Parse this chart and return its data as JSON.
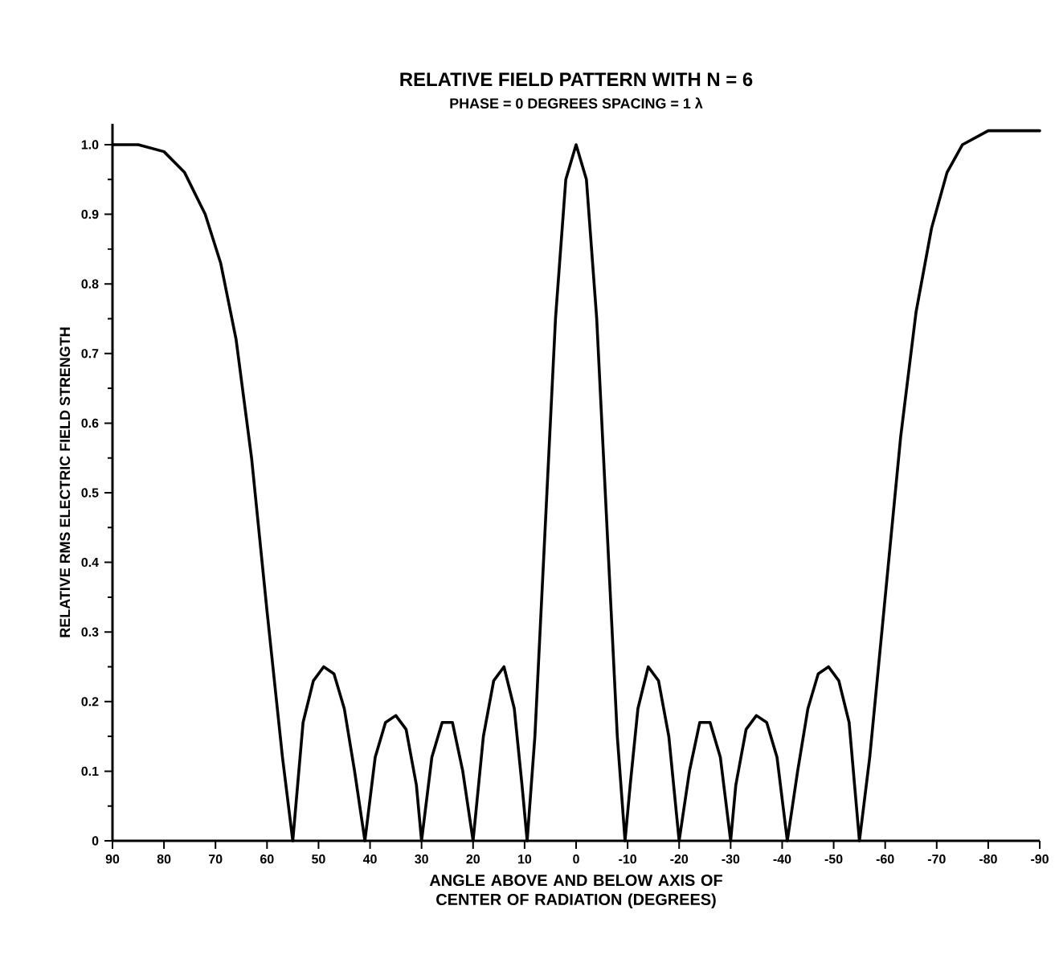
{
  "chart_data": {
    "type": "line",
    "title": "RELATIVE FIELD PATTERN WITH N = 6",
    "subtitle": "PHASE = 0 DEGREES   SPACING = 1 λ",
    "xlabel": "ANGLE ABOVE AND BELOW AXIS OF CENTER OF RADIATION (DEGREES)",
    "ylabel": "RELATIVE RMS ELECTRIC FIELD STRENGTH",
    "x": [
      90,
      85,
      80,
      76,
      72,
      69,
      66,
      63,
      60,
      57,
      55,
      53,
      51,
      49,
      47,
      45,
      43,
      41,
      39,
      37,
      35,
      33,
      31,
      30,
      28,
      26,
      24,
      22,
      20,
      18,
      16,
      14,
      12,
      10.5,
      9.5,
      8,
      6,
      4,
      2,
      0,
      -2,
      -4,
      -6,
      -8,
      -9.5,
      -10.5,
      -12,
      -14,
      -16,
      -18,
      -20,
      -22,
      -24,
      -26,
      -28,
      -30,
      -31,
      -33,
      -35,
      -37,
      -39,
      -41,
      -43,
      -45,
      -47,
      -49,
      -51,
      -53,
      -55,
      -57,
      -60,
      -63,
      -66,
      -69,
      -72,
      -75,
      -80,
      -85,
      -90
    ],
    "series": [
      {
        "color": "#000000",
        "values": [
          1.0,
          1.0,
          0.99,
          0.96,
          0.9,
          0.83,
          0.72,
          0.55,
          0.33,
          0.12,
          0,
          0.17,
          0.23,
          0.25,
          0.24,
          0.19,
          0.1,
          0,
          0.12,
          0.17,
          0.18,
          0.16,
          0.08,
          0,
          0.12,
          0.17,
          0.17,
          0.1,
          0,
          0.15,
          0.23,
          0.25,
          0.19,
          0.08,
          0,
          0.15,
          0.45,
          0.75,
          0.95,
          1.0,
          0.95,
          0.75,
          0.45,
          0.15,
          0,
          0.08,
          0.19,
          0.25,
          0.23,
          0.15,
          0,
          0.1,
          0.17,
          0.17,
          0.12,
          0,
          0.08,
          0.16,
          0.18,
          0.17,
          0.12,
          0,
          0.1,
          0.19,
          0.24,
          0.25,
          0.23,
          0.17,
          0,
          0.12,
          0.35,
          0.58,
          0.76,
          0.88,
          0.96,
          1.0,
          1.02,
          1.02,
          1.02
        ]
      }
    ],
    "xlim": [
      90,
      -90
    ],
    "xticks": [
      90,
      80,
      70,
      60,
      50,
      40,
      30,
      20,
      10,
      0,
      -10,
      -20,
      -30,
      -40,
      -50,
      -60,
      -70,
      -80,
      -90
    ],
    "ylim": [
      0,
      1.03
    ],
    "yticks": [
      0,
      0.1,
      0.2,
      0.3,
      0.4,
      0.5,
      0.6,
      0.7,
      0.8,
      0.9,
      {
        "value": 1.0,
        "label": "1.0"
      }
    ],
    "grid": false,
    "marker": "none",
    "line_style": "solid"
  }
}
